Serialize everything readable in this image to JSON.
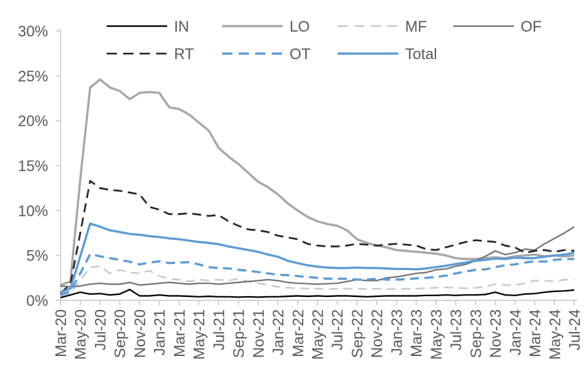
{
  "chart_data": {
    "type": "line",
    "title": "",
    "xlabel": "",
    "ylabel": "",
    "ylim": [
      0,
      30
    ],
    "ytick_values": [
      0,
      5,
      10,
      15,
      20,
      25,
      30
    ],
    "ytick_labels": [
      "0%",
      "5%",
      "10%",
      "15%",
      "20%",
      "25%",
      "30%"
    ],
    "grid": false,
    "legend_position": "top",
    "x_label_every": 2,
    "x": [
      "Mar-20",
      "Apr-20",
      "May-20",
      "Jun-20",
      "Jul-20",
      "Aug-20",
      "Sep-20",
      "Oct-20",
      "Nov-20",
      "Dec-20",
      "Jan-21",
      "Feb-21",
      "Mar-21",
      "Apr-21",
      "May-21",
      "Jun-21",
      "Jul-21",
      "Aug-21",
      "Sep-21",
      "Oct-21",
      "Nov-21",
      "Dec-21",
      "Jan-22",
      "Feb-22",
      "Mar-22",
      "Apr-22",
      "May-22",
      "Jun-22",
      "Jul-22",
      "Aug-22",
      "Sep-22",
      "Oct-22",
      "Nov-22",
      "Dec-22",
      "Jan-23",
      "Feb-23",
      "Mar-23",
      "Apr-23",
      "May-23",
      "Jun-23",
      "Jul-23",
      "Aug-23",
      "Sep-23",
      "Oct-23",
      "Nov-23",
      "Dec-23",
      "Jan-24",
      "Feb-24",
      "Mar-24",
      "Apr-24",
      "May-24",
      "Jun-24",
      "Jul-24"
    ],
    "colors": {
      "black": "#000000",
      "light_gray": "#a6a6a6",
      "lighter_gray": "#c9c9c9",
      "dark_gray": "#757575",
      "near_black": "#262626",
      "blue": "#5b9bd5",
      "axis": "#c6c6c6",
      "text": "#595959"
    },
    "series": [
      {
        "name": "IN",
        "color": "#000000",
        "style": "solid",
        "width": 2.2,
        "values": [
          0.3,
          0.6,
          0.9,
          0.7,
          0.75,
          0.6,
          0.7,
          1.2,
          0.5,
          0.5,
          0.6,
          0.5,
          0.5,
          0.45,
          0.4,
          0.45,
          0.4,
          0.4,
          0.35,
          0.4,
          0.35,
          0.4,
          0.4,
          0.45,
          0.5,
          0.45,
          0.5,
          0.45,
          0.5,
          0.5,
          0.45,
          0.4,
          0.45,
          0.5,
          0.5,
          0.5,
          0.5,
          0.55,
          0.55,
          0.6,
          0.55,
          0.6,
          0.6,
          0.65,
          0.9,
          0.6,
          0.55,
          0.7,
          0.75,
          0.9,
          1.0,
          1.05,
          1.15
        ]
      },
      {
        "name": "LO",
        "color": "#a6a6a6",
        "style": "solid",
        "width": 3.2,
        "values": [
          1.7,
          2.1,
          13.5,
          23.7,
          24.6,
          23.7,
          23.3,
          22.4,
          23.1,
          23.2,
          23.1,
          21.5,
          21.3,
          20.7,
          19.8,
          18.9,
          17.0,
          16.0,
          15.2,
          14.2,
          13.2,
          12.6,
          11.8,
          10.8,
          10.0,
          9.3,
          8.8,
          8.5,
          8.3,
          7.8,
          6.8,
          6.4,
          6.1,
          5.9,
          5.6,
          5.5,
          5.4,
          5.3,
          5.2,
          5.0,
          4.7,
          4.6,
          4.6,
          4.7,
          4.8,
          4.7,
          4.9,
          5.0,
          5.1,
          4.9,
          5.0,
          4.9,
          5.0
        ]
      },
      {
        "name": "MF",
        "color": "#c9c9c9",
        "style": "dashed",
        "width": 2.4,
        "values": [
          0.5,
          0.8,
          2.2,
          3.7,
          3.8,
          3.0,
          3.4,
          3.1,
          3.0,
          3.3,
          2.7,
          2.4,
          2.3,
          2.1,
          2.3,
          2.2,
          2.3,
          2.2,
          2.4,
          2.1,
          1.9,
          1.7,
          1.5,
          1.4,
          1.35,
          1.3,
          1.3,
          1.25,
          1.3,
          1.3,
          1.3,
          1.25,
          1.3,
          1.25,
          1.25,
          1.3,
          1.3,
          1.35,
          1.4,
          1.45,
          1.4,
          1.35,
          1.4,
          1.5,
          1.8,
          1.7,
          1.7,
          1.9,
          2.2,
          2.2,
          2.1,
          2.3,
          2.3
        ]
      },
      {
        "name": "OF",
        "color": "#757575",
        "style": "solid",
        "width": 2.2,
        "values": [
          1.6,
          1.5,
          1.6,
          1.8,
          1.9,
          1.8,
          1.8,
          2.0,
          1.7,
          1.8,
          1.9,
          2.0,
          1.9,
          1.8,
          1.9,
          1.9,
          1.8,
          1.9,
          2.0,
          2.1,
          2.2,
          2.3,
          2.2,
          2.0,
          1.9,
          1.85,
          1.8,
          1.85,
          1.9,
          2.1,
          2.3,
          2.2,
          2.2,
          2.5,
          2.6,
          2.8,
          3.0,
          3.1,
          3.4,
          3.5,
          3.8,
          4.0,
          4.4,
          4.9,
          5.5,
          5.1,
          5.3,
          5.7,
          5.6,
          6.3,
          6.9,
          7.5,
          8.2
        ]
      },
      {
        "name": "RT",
        "color": "#262626",
        "style": "dashed",
        "width": 2.6,
        "values": [
          0.8,
          1.8,
          7.5,
          13.3,
          12.5,
          12.3,
          12.2,
          12.0,
          11.8,
          10.4,
          10.1,
          9.6,
          9.6,
          9.7,
          9.55,
          9.4,
          9.5,
          8.8,
          8.3,
          7.9,
          7.8,
          7.6,
          7.2,
          7.0,
          6.8,
          6.3,
          6.1,
          6.0,
          6.0,
          6.1,
          6.3,
          6.2,
          6.1,
          6.2,
          6.3,
          6.2,
          6.1,
          5.7,
          5.6,
          5.9,
          6.2,
          6.5,
          6.7,
          6.6,
          6.5,
          6.1,
          5.9,
          5.3,
          5.5,
          5.6,
          5.4,
          5.6,
          5.5
        ]
      },
      {
        "name": "OT",
        "color": "#5b9bd5",
        "style": "dashed",
        "width": 3.2,
        "values": [
          0.6,
          1.0,
          3.0,
          5.15,
          4.9,
          4.7,
          4.5,
          4.3,
          4.0,
          4.2,
          4.35,
          4.15,
          4.2,
          4.25,
          4.0,
          3.7,
          3.6,
          3.55,
          3.4,
          3.3,
          3.15,
          3.0,
          2.85,
          2.8,
          2.7,
          2.6,
          2.5,
          2.4,
          2.4,
          2.4,
          2.3,
          2.3,
          2.4,
          2.3,
          2.3,
          2.35,
          2.45,
          2.5,
          2.6,
          2.75,
          3.0,
          3.2,
          3.4,
          3.45,
          3.7,
          3.9,
          4.0,
          4.2,
          4.35,
          4.3,
          4.5,
          4.6,
          4.6
        ]
      },
      {
        "name": "Total",
        "color": "#5b9bd5",
        "style": "solid",
        "width": 3.2,
        "values": [
          0.9,
          1.3,
          4.9,
          8.55,
          8.2,
          7.8,
          7.6,
          7.4,
          7.3,
          7.15,
          7.05,
          6.9,
          6.8,
          6.65,
          6.5,
          6.4,
          6.25,
          6.0,
          5.8,
          5.6,
          5.4,
          5.1,
          4.85,
          4.4,
          4.15,
          3.9,
          3.75,
          3.65,
          3.6,
          3.6,
          3.65,
          3.6,
          3.6,
          3.55,
          3.5,
          3.5,
          3.45,
          3.55,
          3.7,
          3.85,
          4.05,
          4.2,
          4.4,
          4.5,
          4.65,
          4.6,
          4.75,
          4.7,
          4.7,
          4.85,
          5.0,
          5.1,
          5.3
        ]
      }
    ],
    "legend_rows": [
      [
        "IN",
        "LO",
        "MF",
        "OF"
      ],
      [
        "RT",
        "OT",
        "Total"
      ]
    ]
  }
}
